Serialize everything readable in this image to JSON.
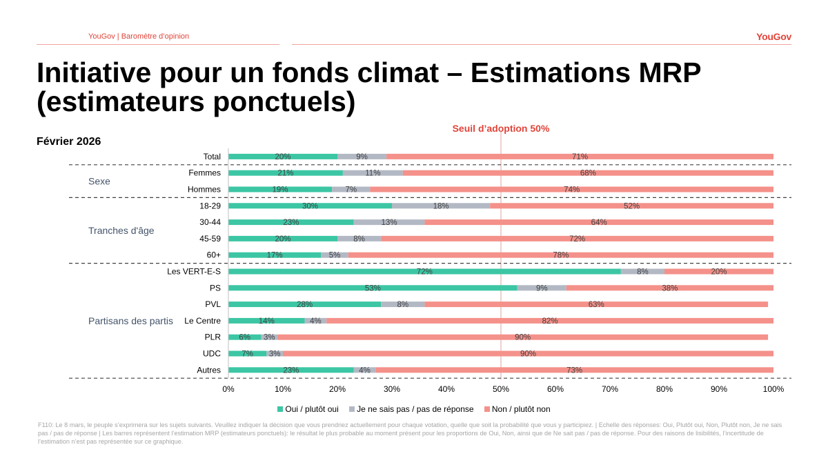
{
  "header": {
    "source": "YouGov | Baromètre d’opinion",
    "logo": "YouGov"
  },
  "title": "Initiative pour un fonds climat – Estimations MRP (estimateurs ponctuels)",
  "subtitle": "Février 2026",
  "threshold_label": "Seuil d’adoption 50%",
  "legend": [
    "Oui / plutôt oui",
    "Je ne sais pas / pas de réponse",
    "Non / plutôt non"
  ],
  "colors": {
    "oui": "#3cc6a4",
    "nsp": "#b3b9c4",
    "non": "#f4918a",
    "accent": "#e0443a"
  },
  "footnote": "F110: Le 8 mars, le peuple s’exprimera sur les sujets suivants. Veuillez indiquer la décision que vous prendriez actuellement pour chaque votation, quelle que soit la probabilité que vous y participiez. | Echelle des réponses: Oui, Plutôt oui, Non, Plutôt non, Je ne sais pas / pas de réponse | Les barres représentent l’estimation MRP (estimateurs ponctuels): le résultat le plus probable au moment présent pour les proportions de Oui, Non, ainsi que de Ne sait pas / pas de réponse. Pour des raisons de lisibilités, l’incertitude de l’estimation n’est pas représentée sur ce graphique.",
  "chart_data": {
    "type": "bar",
    "orientation": "horizontal",
    "stacked": true,
    "categories": [
      "Total",
      "Femmes",
      "Hommes",
      "18-29",
      "30-44",
      "45-59",
      "60+",
      "Les VERT-E-S",
      "PS",
      "PVL",
      "Le Centre",
      "PLR",
      "UDC",
      "Autres"
    ],
    "groups": [
      {
        "label": "Sexe",
        "members": [
          "Femmes",
          "Hommes"
        ]
      },
      {
        "label": "Tranches d'âge",
        "members": [
          "18-29",
          "30-44",
          "45-59",
          "60+"
        ]
      },
      {
        "label": "Partisans des partis",
        "members": [
          "Les VERT-E-S",
          "PS",
          "PVL",
          "Le Centre",
          "PLR",
          "UDC",
          "Autres"
        ]
      }
    ],
    "series": [
      {
        "name": "Oui / plutôt oui",
        "values": [
          20,
          21,
          19,
          30,
          23,
          20,
          17,
          72,
          53,
          28,
          14,
          6,
          7,
          23
        ]
      },
      {
        "name": "Je ne sais pas / pas de réponse",
        "values": [
          9,
          11,
          7,
          18,
          13,
          8,
          5,
          8,
          9,
          8,
          4,
          3,
          3,
          4
        ]
      },
      {
        "name": "Non / plutôt non",
        "values": [
          71,
          68,
          74,
          52,
          64,
          72,
          78,
          20,
          38,
          63,
          82,
          90,
          90,
          73
        ]
      }
    ],
    "xticks": [
      "0%",
      "10%",
      "20%",
      "30%",
      "40%",
      "50%",
      "60%",
      "70%",
      "80%",
      "90%",
      "100%"
    ],
    "xlim": [
      0,
      100
    ],
    "threshold": 50
  }
}
